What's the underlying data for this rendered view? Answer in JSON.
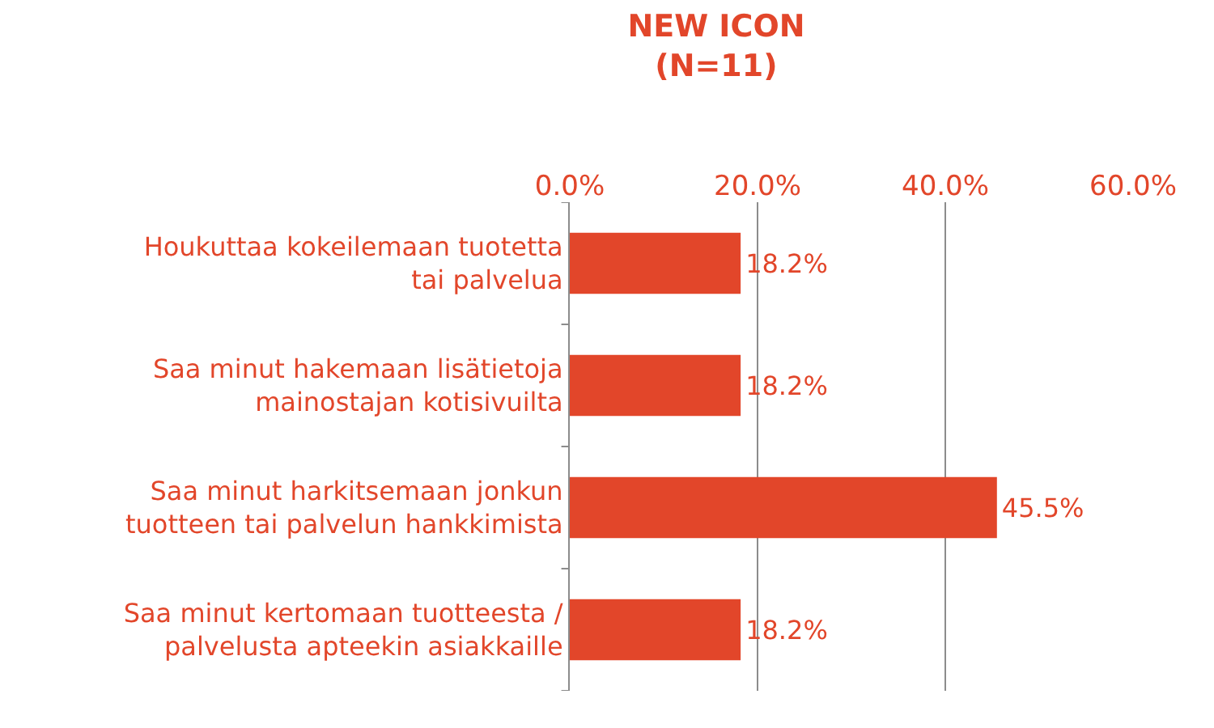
{
  "chart_data": {
    "type": "bar",
    "orientation": "horizontal",
    "title": "NEW ICON",
    "subtitle": "(N=11)",
    "categories": [
      "Houkuttaa kokeilemaan tuotetta tai palvelua",
      "Saa minut hakemaan lisätietoja mainostajan kotisivuilta",
      "Saa minut harkitsemaan jonkun tuotteen tai palvelun hankkimista",
      "Saa minut kertomaan tuotteesta / palvelusta apteekin asiakkaille"
    ],
    "values": [
      18.2,
      18.2,
      45.5,
      18.2
    ],
    "value_labels": [
      "18.2%",
      "18.2%",
      "45.5%",
      "18.2%"
    ],
    "color": "#e2462a",
    "xlim": [
      0,
      60
    ],
    "xticks": [
      {
        "value": 0,
        "label": "0.0%"
      },
      {
        "value": 20,
        "label": "20.0%"
      },
      {
        "value": 40,
        "label": "40.0%"
      },
      {
        "value": 60,
        "label": "60.0%"
      }
    ],
    "grid": "x",
    "legend": false
  }
}
